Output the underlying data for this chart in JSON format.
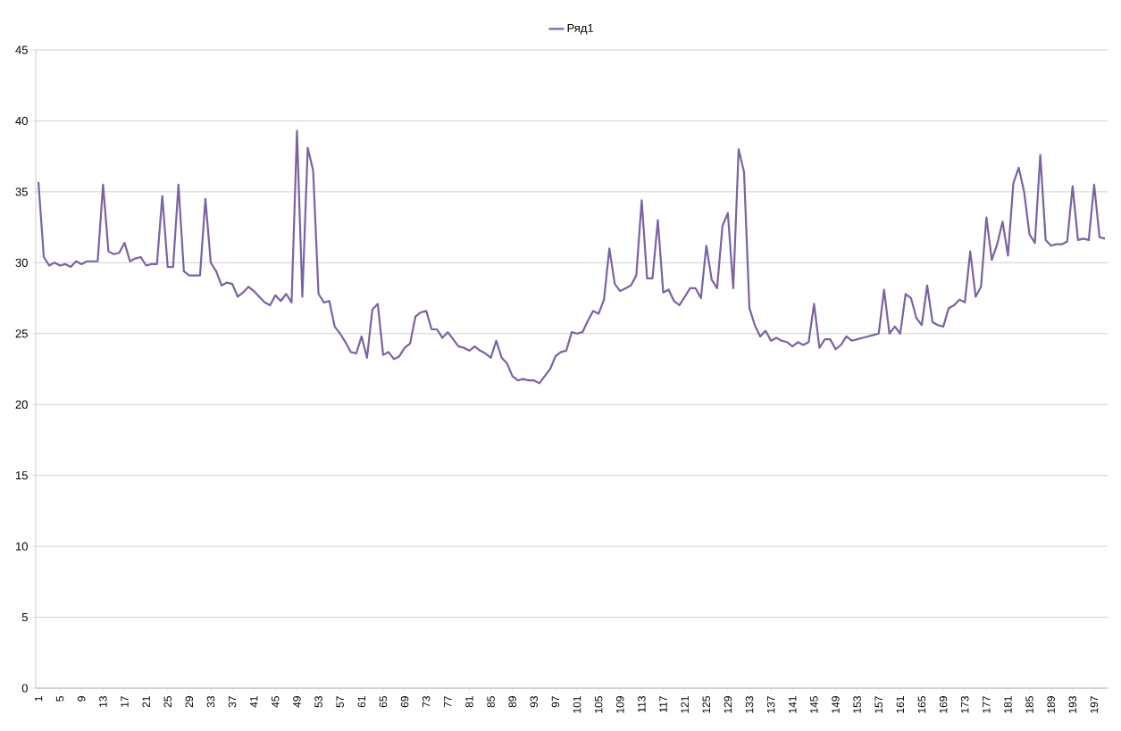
{
  "chart_data": {
    "type": "line",
    "categories": [
      "1",
      null,
      null,
      null,
      "5",
      null,
      null,
      null,
      "9",
      null,
      null,
      null,
      "13",
      null,
      null,
      null,
      "17",
      null,
      null,
      null,
      "21",
      null,
      null,
      null,
      "25",
      null,
      null,
      null,
      "29",
      null,
      null,
      null,
      "33",
      null,
      null,
      null,
      "37",
      null,
      null,
      null,
      "41",
      null,
      null,
      null,
      "45",
      null,
      null,
      null,
      "49",
      null,
      null,
      null,
      "53",
      null,
      null,
      null,
      "57",
      null,
      null,
      null,
      "61",
      null,
      null,
      null,
      "65",
      null,
      null,
      null,
      "69",
      null,
      null,
      null,
      "73",
      null,
      null,
      null,
      "77",
      null,
      null,
      null,
      "81",
      null,
      null,
      null,
      "85",
      null,
      null,
      null,
      "89",
      null,
      null,
      null,
      "93",
      null,
      null,
      null,
      "97",
      null,
      null,
      null,
      "101",
      null,
      null,
      null,
      "105",
      null,
      null,
      null,
      "109",
      null,
      null,
      null,
      "113",
      null,
      null,
      null,
      "117",
      null,
      null,
      null,
      "121",
      null,
      null,
      null,
      "125",
      null,
      null,
      null,
      "129",
      null,
      null,
      null,
      "133",
      null,
      null,
      null,
      "137",
      null,
      null,
      null,
      "141",
      null,
      null,
      null,
      "145",
      null,
      null,
      null,
      "149",
      null,
      null,
      null,
      "153",
      null,
      null,
      null,
      "157",
      null,
      null,
      null,
      "161",
      null,
      null,
      null,
      "165",
      null,
      null,
      null,
      "169",
      null,
      null,
      null,
      "173",
      null,
      null,
      null,
      "177",
      null,
      null,
      null,
      "181",
      null,
      null,
      null,
      "185",
      null,
      null,
      null,
      "189",
      null,
      null,
      null,
      "193",
      null,
      null,
      null,
      "197",
      null,
      null
    ],
    "series": [
      {
        "name": "Ряд1",
        "color": "#7b62a3",
        "values": [
          35.7,
          30.4,
          29.8,
          30.0,
          29.8,
          29.9,
          29.7,
          30.1,
          29.9,
          30.1,
          30.1,
          30.1,
          35.5,
          30.8,
          30.6,
          30.7,
          31.4,
          30.1,
          30.3,
          30.4,
          29.8,
          29.9,
          29.9,
          34.7,
          29.7,
          29.7,
          35.5,
          29.4,
          29.1,
          29.1,
          29.1,
          34.5,
          30.0,
          29.4,
          28.4,
          28.6,
          28.5,
          27.6,
          27.9,
          28.3,
          28.0,
          27.6,
          27.2,
          27.0,
          27.7,
          27.3,
          27.8,
          27.2,
          39.3,
          27.6,
          38.1,
          36.5,
          27.8,
          27.2,
          27.3,
          25.5,
          25.0,
          24.4,
          23.7,
          23.6,
          24.8,
          23.3,
          26.7,
          27.1,
          23.5,
          23.7,
          23.2,
          23.4,
          24.0,
          24.3,
          26.2,
          26.5,
          26.6,
          25.3,
          25.3,
          24.7,
          25.1,
          24.6,
          24.1,
          24.0,
          23.8,
          24.1,
          23.8,
          23.6,
          23.3,
          24.5,
          23.3,
          22.9,
          22.0,
          21.7,
          21.8,
          21.7,
          21.7,
          21.5,
          22.0,
          22.5,
          23.4,
          23.7,
          23.8,
          25.1,
          25.0,
          25.1,
          25.9,
          26.6,
          26.4,
          27.4,
          31.0,
          28.5,
          28.0,
          28.2,
          28.4,
          29.1,
          34.4,
          28.9,
          28.9,
          33.0,
          27.9,
          28.1,
          27.3,
          27.0,
          27.6,
          28.2,
          28.2,
          27.5,
          31.2,
          28.8,
          28.2,
          32.6,
          33.5,
          28.2,
          38.0,
          36.4,
          26.8,
          25.6,
          24.8,
          25.2,
          24.5,
          24.7,
          24.5,
          24.4,
          24.1,
          24.4,
          24.2,
          24.4,
          27.1,
          24.0,
          24.6,
          24.6,
          23.9,
          24.2,
          24.8,
          24.5,
          24.6,
          24.7,
          24.8,
          24.9,
          25.0,
          28.1,
          25.0,
          25.5,
          25.0,
          27.8,
          27.5,
          26.1,
          25.6,
          28.4,
          25.8,
          25.6,
          25.5,
          26.8,
          27.0,
          27.4,
          27.2,
          30.8,
          27.6,
          28.3,
          33.2,
          30.2,
          31.3,
          32.9,
          30.5,
          35.6,
          36.7,
          35.0,
          32.0,
          31.4,
          37.6,
          31.6,
          31.2,
          31.3,
          31.3,
          31.5,
          35.4,
          31.6,
          31.7,
          31.6,
          35.5,
          31.8,
          31.7
        ]
      }
    ],
    "ylim": [
      0,
      45
    ],
    "yticks": [
      0,
      5,
      10,
      15,
      20,
      25,
      30,
      35,
      40,
      45
    ],
    "grid": "y",
    "legend": "top",
    "marker": "none",
    "line_style": "solid"
  }
}
